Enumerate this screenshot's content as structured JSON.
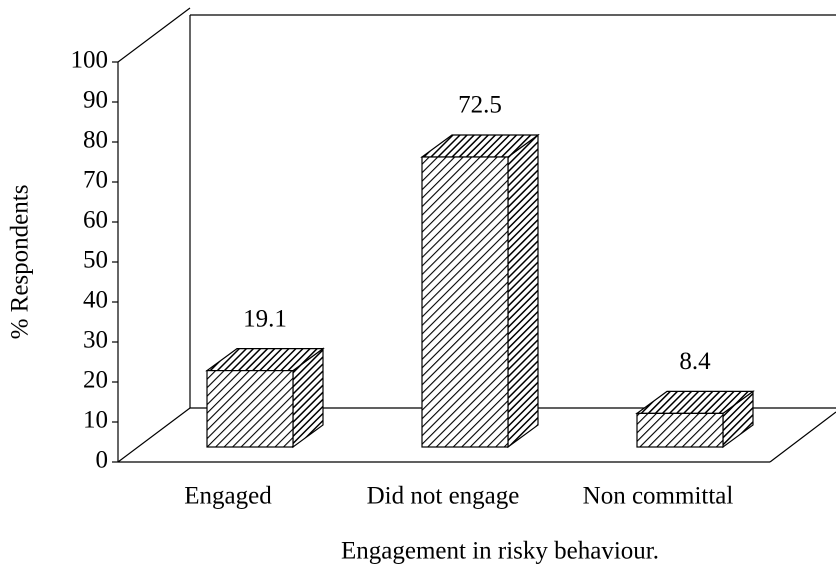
{
  "chart_data": {
    "type": "bar",
    "categories": [
      "Engaged",
      "Did not engage",
      "Non committal"
    ],
    "values": [
      19.1,
      72.5,
      8.4
    ],
    "ylim": [
      0,
      100
    ],
    "yticks": [
      0,
      10,
      20,
      30,
      40,
      50,
      60,
      70,
      80,
      90,
      100
    ],
    "xlabel": "Engagement in risky behaviour.",
    "ylabel": "% Respondents"
  }
}
